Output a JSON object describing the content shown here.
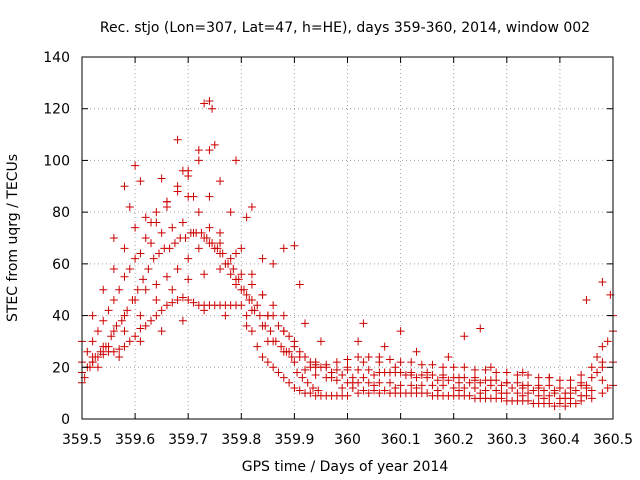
{
  "chart_data": {
    "type": "scatter",
    "title": "Rec. stjo (Lon=307, Lat=47, h=HE), days 359-360, 2014, window 002",
    "xlabel": "GPS time / Days of year 2014",
    "ylabel": "STEC from uqrg / TECUs",
    "xlim": [
      359.5,
      360.5
    ],
    "ylim": [
      0,
      140
    ],
    "xticks": [
      359.5,
      359.6,
      359.7,
      359.8,
      359.9,
      360.0,
      360.1,
      360.2,
      360.3,
      360.4,
      360.5
    ],
    "xtick_labels": [
      "359.5",
      "359.6",
      "359.7",
      "359.8",
      "359.9",
      "360",
      "360.1",
      "360.2",
      "360.3",
      "360.4",
      "360.5"
    ],
    "yticks": [
      0,
      20,
      40,
      60,
      80,
      100,
      120,
      140
    ],
    "ytick_labels": [
      "0",
      "20",
      "40",
      "60",
      "80",
      "100",
      "120",
      "140"
    ],
    "grid": true,
    "legend": "none",
    "marker": "plus",
    "color": "#cc0000",
    "series": [
      {
        "x": [
          359.5,
          359.51,
          359.52,
          359.53,
          359.54,
          359.55,
          359.56,
          359.57,
          359.58,
          359.59,
          359.6,
          359.61,
          359.62,
          359.63,
          359.64,
          359.65,
          359.66,
          359.67,
          359.68,
          359.69,
          359.7,
          359.71,
          359.72,
          359.73,
          359.74,
          359.75,
          359.76,
          359.77,
          359.78,
          359.79,
          359.8,
          359.81,
          359.82,
          359.83,
          359.84,
          359.85,
          359.86,
          359.87,
          359.88,
          359.89,
          359.9,
          359.91,
          359.92,
          359.93,
          359.94,
          359.95,
          359.96,
          359.97,
          359.98,
          359.99,
          360.0,
          360.02,
          360.04,
          360.06,
          360.08,
          360.1,
          360.12,
          360.14,
          360.16,
          360.18,
          360.2,
          360.22,
          360.24,
          360.26,
          360.28,
          360.3,
          360.32,
          360.34,
          360.36,
          360.38,
          360.4,
          360.42,
          360.44,
          360.46,
          360.48,
          360.5
        ],
        "y": [
          14,
          20,
          22,
          24,
          25,
          26,
          26,
          27,
          28,
          30,
          32,
          35,
          36,
          38,
          40,
          42,
          44,
          45,
          46,
          47,
          46,
          45,
          44,
          44,
          44,
          44,
          44,
          44,
          44,
          44,
          44,
          40,
          34,
          28,
          24,
          22,
          20,
          18,
          16,
          14,
          12,
          11,
          10,
          10,
          9,
          9,
          9,
          9,
          9,
          9,
          9,
          10,
          10,
          10,
          10,
          10,
          10,
          10,
          9,
          9,
          9,
          9,
          8,
          8,
          8,
          7,
          7,
          7,
          6,
          6,
          6,
          6,
          7,
          8,
          10,
          13
        ]
      },
      {
        "x": [
          359.5,
          359.52,
          359.54,
          359.56,
          359.58,
          359.6,
          359.62,
          359.64,
          359.66,
          359.68,
          359.7,
          359.72,
          359.74,
          359.76,
          359.78,
          359.8,
          359.82,
          359.84,
          359.86,
          359.88,
          359.9,
          359.92,
          359.94,
          359.96,
          359.98,
          360.0,
          360.02,
          360.04,
          360.06,
          360.08,
          360.1,
          360.12,
          360.14,
          360.16,
          360.18,
          360.2,
          360.22,
          360.24,
          360.26,
          360.28,
          360.3,
          360.32,
          360.34,
          360.36,
          360.38,
          360.4,
          360.42,
          360.44,
          360.46,
          360.48,
          360.5
        ],
        "y": [
          18,
          24,
          28,
          34,
          40,
          46,
          50,
          52,
          55,
          58,
          62,
          66,
          68,
          64,
          56,
          50,
          42,
          36,
          30,
          26,
          22,
          19,
          17,
          16,
          15,
          14,
          14,
          14,
          14,
          14,
          13,
          13,
          13,
          13,
          13,
          12,
          12,
          12,
          11,
          11,
          10,
          10,
          10,
          9,
          9,
          8,
          8,
          9,
          11,
          15,
          22
        ]
      },
      {
        "x": [
          359.5,
          359.52,
          359.54,
          359.56,
          359.58,
          359.6,
          359.62,
          359.64,
          359.66,
          359.68,
          359.7,
          359.72,
          359.74,
          359.76,
          359.78,
          359.8,
          359.82,
          359.84,
          359.86,
          359.88,
          359.9,
          359.92,
          359.94,
          359.96,
          359.98,
          360.0,
          360.02,
          360.04,
          360.06,
          360.08,
          360.1,
          360.12,
          360.14,
          360.16,
          360.18,
          360.2,
          360.22,
          360.24,
          360.26,
          360.28,
          360.3,
          360.32,
          360.34,
          360.36,
          360.38,
          360.4,
          360.42,
          360.44,
          360.46,
          360.48,
          360.5
        ],
        "y": [
          22,
          30,
          38,
          46,
          55,
          62,
          70,
          76,
          82,
          88,
          94,
          100,
          104,
          92,
          80,
          66,
          56,
          48,
          40,
          34,
          28,
          24,
          21,
          20,
          19,
          19,
          19,
          19,
          18,
          18,
          18,
          17,
          17,
          17,
          16,
          16,
          16,
          15,
          15,
          15,
          14,
          14,
          13,
          13,
          13,
          12,
          12,
          13,
          16,
          22,
          34
        ]
      },
      {
        "x": [
          359.5,
          359.52,
          359.54,
          359.56,
          359.58,
          359.6,
          359.62,
          359.64,
          359.66,
          359.68,
          359.7,
          359.72,
          359.74,
          359.76,
          359.78,
          359.8,
          359.82,
          359.84,
          359.86,
          359.88,
          359.9,
          359.92,
          359.94,
          359.96,
          359.98,
          360.0,
          360.02,
          360.04,
          360.06,
          360.08,
          360.1,
          360.12,
          360.14,
          360.16,
          360.18,
          360.2,
          360.22,
          360.24,
          360.26,
          360.28,
          360.3,
          360.32,
          360.34,
          360.36,
          360.38,
          360.4,
          360.42,
          360.44,
          360.46,
          360.48,
          360.5
        ],
        "y": [
          30,
          40,
          50,
          58,
          66,
          74,
          78,
          80,
          84,
          90,
          86,
          80,
          74,
          68,
          62,
          56,
          52,
          48,
          44,
          40,
          30,
          24,
          22,
          21,
          22,
          23,
          24,
          24,
          24,
          23,
          22,
          22,
          21,
          21,
          20,
          20,
          20,
          19,
          19,
          18,
          18,
          17,
          17,
          16,
          16,
          15,
          15,
          17,
          20,
          28,
          40
        ]
      },
      {
        "x": [
          359.51,
          359.53,
          359.55,
          359.57,
          359.59,
          359.61,
          359.63,
          359.65,
          359.67,
          359.69,
          359.71,
          359.73,
          359.75,
          359.77,
          359.79,
          359.81,
          359.83,
          359.85,
          359.87,
          359.89,
          359.91,
          359.93,
          359.95,
          359.97,
          359.99,
          360.01,
          360.03,
          360.05,
          360.07,
          360.09,
          360.11,
          360.13,
          360.15,
          360.17,
          360.19,
          360.21,
          360.23,
          360.25,
          360.27,
          360.29,
          360.31,
          360.33,
          360.35,
          360.37,
          360.39,
          360.41,
          360.43,
          360.45,
          360.47,
          360.49
        ],
        "y": [
          26,
          34,
          42,
          50,
          58,
          64,
          68,
          72,
          74,
          76,
          72,
          70,
          66,
          60,
          54,
          48,
          44,
          40,
          36,
          32,
          26,
          22,
          20,
          18,
          17,
          16,
          16,
          17,
          18,
          18,
          17,
          16,
          16,
          15,
          15,
          14,
          14,
          14,
          13,
          13,
          12,
          12,
          11,
          11,
          10,
          10,
          11,
          13,
          18,
          30
        ]
      },
      {
        "x": [
          359.52,
          359.55,
          359.58,
          359.61,
          359.64,
          359.67,
          359.7,
          359.73,
          359.76,
          359.79,
          359.82,
          359.85,
          359.88,
          359.91,
          359.94,
          359.97,
          360.0,
          360.03,
          360.06,
          360.09,
          360.12,
          360.15,
          360.18,
          360.21,
          360.24,
          360.27,
          360.3,
          360.33,
          360.36,
          360.39,
          360.42,
          360.45,
          360.48
        ],
        "y": [
          22,
          28,
          34,
          40,
          46,
          50,
          54,
          56,
          58,
          52,
          46,
          40,
          34,
          24,
          20,
          18,
          20,
          22,
          22,
          20,
          18,
          18,
          17,
          16,
          16,
          15,
          14,
          13,
          12,
          11,
          10,
          12,
          20
        ]
      },
      {
        "x": [
          359.53,
          359.57,
          359.61,
          359.65,
          359.69,
          359.73,
          359.77,
          359.81,
          359.85,
          359.89,
          359.93,
          359.97,
          360.01,
          360.05,
          360.09,
          360.13,
          360.17,
          360.21,
          360.25,
          360.29,
          360.33,
          360.37,
          360.41,
          360.45,
          360.49
        ],
        "y": [
          20,
          24,
          30,
          34,
          38,
          42,
          40,
          36,
          30,
          26,
          20,
          16,
          14,
          13,
          12,
          12,
          11,
          11,
          10,
          10,
          9,
          8,
          8,
          9,
          12
        ]
      },
      {
        "x": [
          359.505,
          359.515,
          359.525,
          359.535,
          359.545,
          359.555,
          359.565,
          359.575,
          359.585,
          359.595,
          359.605,
          359.615,
          359.625,
          359.635,
          359.645,
          359.655,
          359.665,
          359.675,
          359.685,
          359.695,
          359.705,
          359.715,
          359.725,
          359.735,
          359.745,
          359.755,
          359.765,
          359.775,
          359.785,
          359.795,
          359.805,
          359.815,
          359.825,
          359.835,
          359.845,
          359.855,
          359.865,
          359.875,
          359.885,
          359.895,
          359.905,
          359.915,
          359.925,
          359.935,
          359.945
        ],
        "y": [
          16,
          20,
          24,
          26,
          28,
          32,
          36,
          38,
          42,
          46,
          50,
          54,
          58,
          62,
          64,
          66,
          66,
          68,
          70,
          70,
          72,
          72,
          72,
          70,
          68,
          66,
          64,
          60,
          58,
          54,
          50,
          46,
          42,
          40,
          36,
          34,
          30,
          28,
          26,
          24,
          18,
          16,
          14,
          12,
          11
        ]
      },
      {
        "x": [
          359.6,
          359.65,
          359.68,
          359.7,
          359.72,
          359.73,
          359.74,
          359.745,
          359.75,
          359.79,
          359.82,
          359.9,
          359.91,
          360.03,
          360.1,
          360.22,
          360.25,
          360.45,
          360.48,
          360.495
        ],
        "y": [
          98,
          93,
          108,
          96,
          104,
          122,
          123,
          120,
          106,
          100,
          82,
          67,
          52,
          37,
          34,
          32,
          35,
          46,
          53,
          48
        ]
      },
      {
        "x": [
          359.56,
          359.58,
          359.59,
          359.61,
          359.63,
          359.66,
          359.69,
          359.71,
          359.74,
          359.76,
          359.79,
          359.81,
          359.84,
          359.86,
          359.88,
          359.92,
          359.95,
          360.02,
          360.07,
          360.13,
          360.19,
          360.27,
          360.33,
          360.38,
          360.44,
          360.47
        ],
        "y": [
          70,
          90,
          82,
          92,
          76,
          84,
          96,
          86,
          86,
          72,
          64,
          78,
          62,
          60,
          66,
          37,
          30,
          30,
          28,
          26,
          24,
          20,
          18,
          16,
          14,
          24
        ]
      },
      {
        "x": [
          359.99,
          360.01,
          360.03,
          360.05,
          360.07,
          360.09,
          360.11,
          360.13,
          360.15,
          360.17,
          360.19,
          360.21,
          360.23,
          360.25,
          360.27,
          360.29,
          360.31,
          360.33,
          360.35,
          360.37,
          360.39,
          360.41,
          360.43
        ],
        "y": [
          12,
          12,
          11,
          11,
          11,
          10,
          10,
          10,
          10,
          9,
          9,
          9,
          9,
          8,
          8,
          8,
          7,
          7,
          6,
          6,
          5,
          5,
          6
        ]
      }
    ]
  }
}
